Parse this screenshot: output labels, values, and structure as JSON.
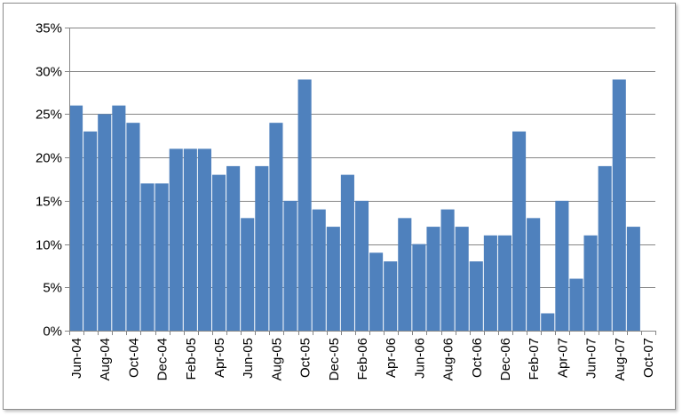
{
  "chart_data": {
    "type": "bar",
    "title": "",
    "xlabel": "",
    "ylabel": "",
    "ylim": [
      0,
      0.35
    ],
    "grid": true,
    "legend": "none",
    "bar_color": "#4f81bd",
    "grid_color": "#868686",
    "yticks": [
      0,
      0.05,
      0.1,
      0.15,
      0.2,
      0.25,
      0.3,
      0.35
    ],
    "ytick_labels": [
      "0%",
      "5%",
      "10%",
      "15%",
      "20%",
      "25%",
      "30%",
      "35%"
    ],
    "xtick_labels": [
      "Jun-04",
      "Aug-04",
      "Oct-04",
      "Dec-04",
      "Feb-05",
      "Apr-05",
      "Jun-05",
      "Aug-05",
      "Oct-05",
      "Dec-05",
      "Feb-06",
      "Apr-06",
      "Jun-06",
      "Aug-06",
      "Oct-06",
      "Dec-06",
      "Feb-07",
      "Apr-07",
      "Jun-07",
      "Aug-07",
      "Oct-07"
    ],
    "categories": [
      "Jun-04",
      "Jul-04",
      "Aug-04",
      "Sep-04",
      "Oct-04",
      "Nov-04",
      "Dec-04",
      "Jan-05",
      "Feb-05",
      "Mar-05",
      "Apr-05",
      "May-05",
      "Jun-05",
      "Jul-05",
      "Aug-05",
      "Sep-05",
      "Oct-05",
      "Nov-05",
      "Dec-05",
      "Jan-06",
      "Feb-06",
      "Mar-06",
      "Apr-06",
      "May-06",
      "Jun-06",
      "Jul-06",
      "Aug-06",
      "Sep-06",
      "Oct-06",
      "Nov-06",
      "Dec-06",
      "Jan-07",
      "Feb-07",
      "Mar-07",
      "Apr-07",
      "May-07",
      "Jun-07",
      "Jul-07",
      "Aug-07",
      "Sep-07"
    ],
    "values": [
      0.26,
      0.23,
      0.25,
      0.26,
      0.24,
      0.17,
      0.17,
      0.21,
      0.21,
      0.21,
      0.18,
      0.19,
      0.13,
      0.19,
      0.24,
      0.15,
      0.29,
      0.14,
      0.12,
      0.18,
      0.15,
      0.09,
      0.08,
      0.13,
      0.1,
      0.12,
      0.14,
      0.12,
      0.08,
      0.11,
      0.11,
      0.23,
      0.13,
      0.02,
      0.15,
      0.06,
      0.11,
      0.19,
      0.29,
      0.12
    ]
  }
}
